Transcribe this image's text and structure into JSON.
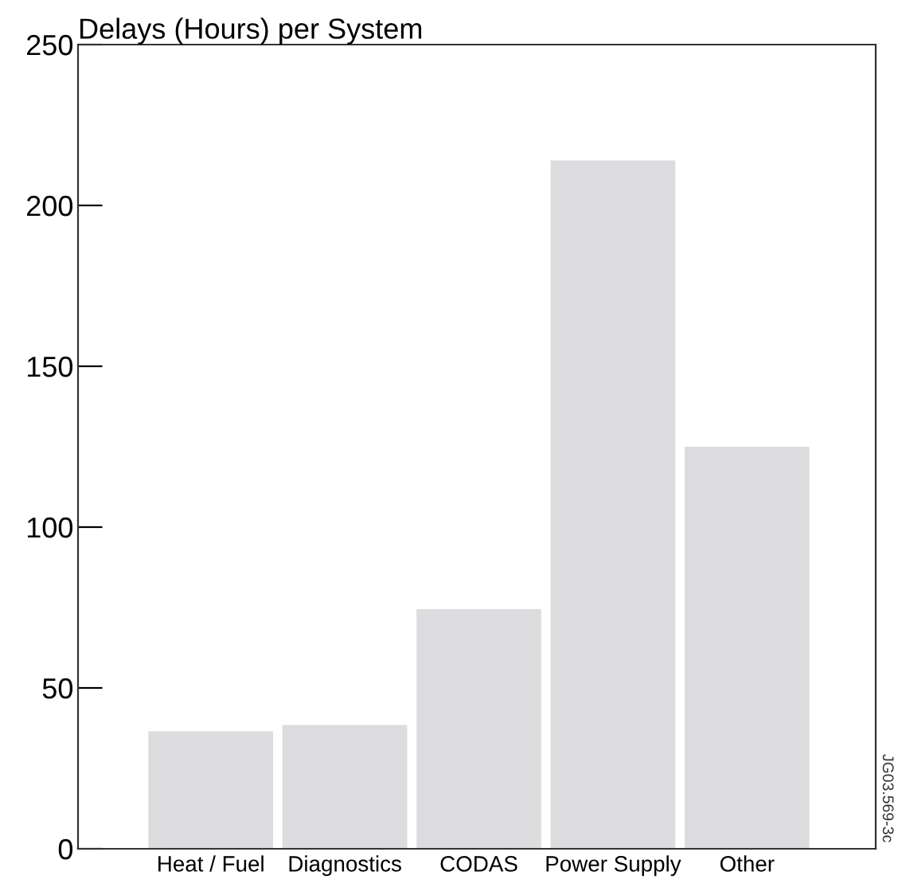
{
  "chart_data": {
    "type": "bar",
    "title": "Delays (Hours) per System",
    "categories": [
      "Heat / Fuel",
      "Diagnostics",
      "CODAS",
      "Power Supply",
      "Other"
    ],
    "values": [
      36.5,
      38.5,
      74.5,
      214,
      125
    ],
    "color": "#dcdcde",
    "ylim": [
      0,
      250
    ],
    "yticks": [
      0,
      50,
      100,
      150,
      200,
      250
    ],
    "grid": false,
    "annotations": [
      "JG03.569-3c"
    ]
  }
}
